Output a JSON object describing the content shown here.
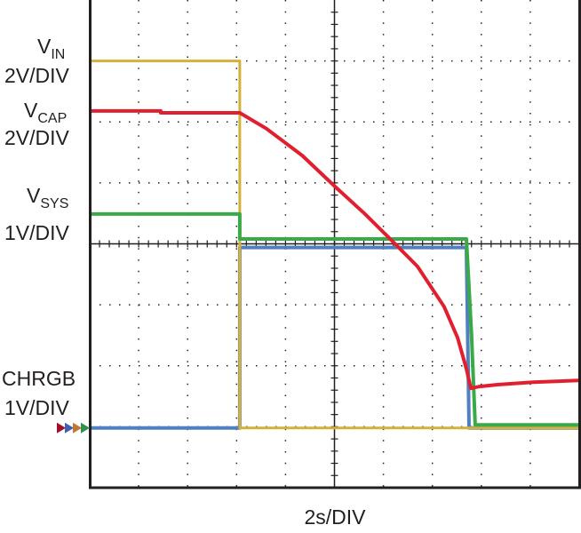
{
  "chart_data": {
    "type": "line",
    "title": "",
    "xlabel": "2s/DIV",
    "xlim": [
      0,
      20
    ],
    "ylim_divisions": [
      0,
      8
    ],
    "grid": true,
    "channel_labels": [
      {
        "main": "V",
        "sub": "IN",
        "scale": "2V/DIV"
      },
      {
        "main": "V",
        "sub": "CAP",
        "scale": "2V/DIV"
      },
      {
        "main": "V",
        "sub": "SYS",
        "scale": "1V/DIV"
      },
      {
        "main": "CHRGB",
        "sub": "",
        "scale": "1V/DIV"
      }
    ],
    "ground_marker_colors": [
      "#a0102a",
      "#4060b0",
      "#c07830",
      "#309050"
    ],
    "ground_level_div": 0.98,
    "series": [
      {
        "name": "VIN",
        "color": "#d4b23a",
        "points": [
          [
            0,
            7.0
          ],
          [
            6.13,
            7.0
          ],
          [
            6.13,
            0.98
          ],
          [
            20,
            0.98
          ]
        ]
      },
      {
        "name": "VCAP",
        "color": "#e0202f",
        "points": [
          [
            0,
            6.18
          ],
          [
            2.9,
            6.18
          ],
          [
            2.9,
            6.15
          ],
          [
            6.13,
            6.15
          ],
          [
            7.22,
            5.89
          ],
          [
            8.68,
            5.45
          ],
          [
            10.02,
            4.94
          ],
          [
            11.22,
            4.5
          ],
          [
            12.3,
            4.07
          ],
          [
            13.39,
            3.63
          ],
          [
            14.48,
            2.97
          ],
          [
            15.03,
            2.46
          ],
          [
            15.39,
            1.95
          ],
          [
            15.57,
            1.63
          ],
          [
            15.93,
            1.66
          ],
          [
            16.66,
            1.69
          ],
          [
            18.11,
            1.73
          ],
          [
            20,
            1.76
          ]
        ]
      },
      {
        "name": "VSYS",
        "color": "#3aaa48",
        "points": [
          [
            0,
            4.49
          ],
          [
            6.13,
            4.49
          ],
          [
            6.13,
            4.08
          ],
          [
            15.39,
            4.08
          ],
          [
            15.6,
            2.5
          ],
          [
            15.75,
            1.03
          ],
          [
            20,
            1.03
          ]
        ]
      },
      {
        "name": "CHRGB",
        "color": "#5080c0",
        "points": [
          [
            0,
            0.98
          ],
          [
            6.13,
            0.98
          ],
          [
            6.13,
            3.94
          ],
          [
            15.39,
            3.94
          ],
          [
            15.5,
            0.98
          ],
          [
            20,
            0.98
          ]
        ]
      }
    ]
  }
}
